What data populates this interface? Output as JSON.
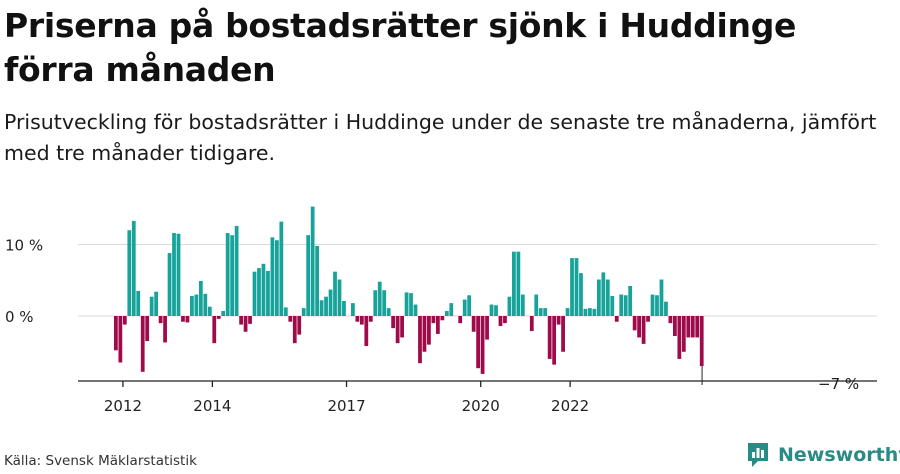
{
  "header": {
    "title": "Priserna på bostadsrätter sjönk i Huddinge förra månaden",
    "subtitle": "Prisutveckling för bostadsrätter i Huddinge under de senaste tre månaderna, jämfört med tre månader tidigare."
  },
  "footer": {
    "source": "Källa: Svensk Mäklarstatistik",
    "brand": "Newsworthy"
  },
  "colors": {
    "positive": "#17a39a",
    "negative": "#9e0a4a",
    "grid": "#d9d9d9",
    "axis": "#222222",
    "brand": "#2a8a86"
  },
  "chart_data": {
    "type": "bar",
    "x_ticks": [
      "2012",
      "2014",
      "2017",
      "2020",
      "2022"
    ],
    "x_tick_bar_index": [
      2,
      22,
      52,
      82,
      102
    ],
    "y_ticks": [
      {
        "value": 10,
        "label": "10 %"
      },
      {
        "value": 0,
        "label": "0 %"
      }
    ],
    "ylim": [
      -9,
      15.5
    ],
    "annotation": {
      "text": "−7 %",
      "value": -7
    },
    "values": [
      -4.8,
      -6.5,
      -1.2,
      12,
      13.3,
      3.5,
      -7.8,
      -3.5,
      2.7,
      3.4,
      -1,
      -3.7,
      8.8,
      11.6,
      11.5,
      -0.8,
      -0.9,
      2.8,
      3,
      4.9,
      3.1,
      1.3,
      -3.8,
      -0.4,
      0.7,
      11.6,
      11.3,
      12.6,
      -1.2,
      -2.2,
      -1.1,
      6.2,
      6.7,
      7.3,
      6.3,
      11,
      10.6,
      13.2,
      1.2,
      -0.8,
      -3.8,
      -2.6,
      1.1,
      11.3,
      15.3,
      9.8,
      2.2,
      2.7,
      3.7,
      6.2,
      5.1,
      2.1,
      0,
      1.8,
      -0.8,
      -1.2,
      -4.2,
      -0.8,
      3.6,
      4.8,
      3.6,
      1.1,
      -1.7,
      -3.8,
      -3,
      3.3,
      3.2,
      1.6,
      -6.6,
      -5,
      -4,
      -1,
      -2.5,
      -0.6,
      0.7,
      1.8,
      0,
      -1,
      2.3,
      2.9,
      -2.2,
      -7.3,
      -8.1,
      -3.3,
      1.6,
      1.5,
      -1.4,
      -1,
      2.7,
      9,
      9,
      3,
      0,
      -2.1,
      3,
      1.1,
      1.1,
      -6,
      -6.8,
      -1.2,
      -5,
      1.1,
      8.1,
      8.1,
      6,
      1,
      1.1,
      1,
      5.1,
      6.1,
      5.1,
      2.8,
      -0.8,
      3,
      2.9,
      4.2,
      -2,
      -3,
      -3.9,
      -0.8,
      3,
      2.9,
      5.1,
      2,
      -1,
      -2.8,
      -6,
      -5,
      -3,
      -3,
      -3,
      -7
    ]
  }
}
